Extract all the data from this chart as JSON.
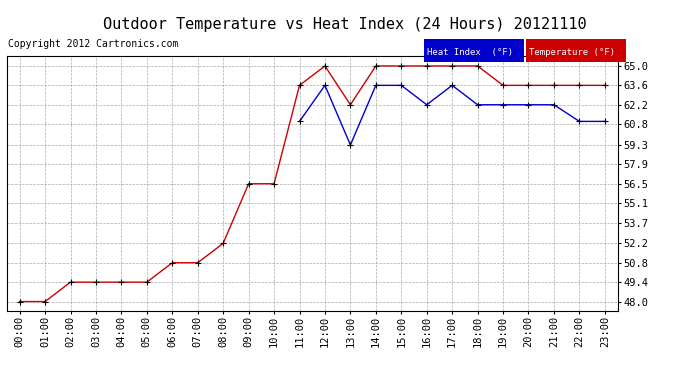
{
  "title": "Outdoor Temperature vs Heat Index (24 Hours) 20121110",
  "copyright": "Copyright 2012 Cartronics.com",
  "background_color": "#ffffff",
  "plot_bg_color": "#ffffff",
  "grid_color": "#aaaaaa",
  "x_labels": [
    "00:00",
    "01:00",
    "02:00",
    "03:00",
    "04:00",
    "05:00",
    "06:00",
    "07:00",
    "08:00",
    "09:00",
    "10:00",
    "11:00",
    "12:00",
    "13:00",
    "14:00",
    "15:00",
    "16:00",
    "17:00",
    "18:00",
    "19:00",
    "20:00",
    "21:00",
    "22:00",
    "23:00"
  ],
  "y_ticks": [
    48.0,
    49.4,
    50.8,
    52.2,
    53.7,
    55.1,
    56.5,
    57.9,
    59.3,
    60.8,
    62.2,
    63.6,
    65.0
  ],
  "ylim": [
    47.3,
    65.7
  ],
  "temp_color": "#cc0000",
  "heat_color": "#0000cc",
  "marker_color": "#000000",
  "temperature": [
    48.0,
    48.0,
    49.4,
    49.4,
    49.4,
    49.4,
    50.8,
    50.8,
    52.2,
    56.5,
    56.5,
    63.6,
    65.0,
    62.2,
    65.0,
    65.0,
    65.0,
    65.0,
    65.0,
    63.6,
    63.6,
    63.6,
    63.6,
    63.6
  ],
  "heat_index": [
    null,
    null,
    null,
    null,
    null,
    null,
    null,
    null,
    null,
    null,
    null,
    61.0,
    63.6,
    59.3,
    63.6,
    63.6,
    62.2,
    63.6,
    62.2,
    62.2,
    62.2,
    62.2,
    61.0,
    61.0
  ],
  "legend_heat_bg": "#0000cc",
  "legend_temp_bg": "#cc0000",
  "legend_text_color": "#ffffff",
  "title_fontsize": 11,
  "copyright_fontsize": 7,
  "tick_fontsize": 7.5
}
